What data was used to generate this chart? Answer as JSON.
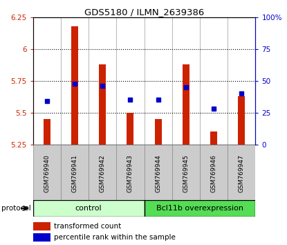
{
  "title": "GDS5180 / ILMN_2639386",
  "samples": [
    "GSM769940",
    "GSM769941",
    "GSM769942",
    "GSM769943",
    "GSM769944",
    "GSM769945",
    "GSM769946",
    "GSM769947"
  ],
  "bar_values": [
    5.45,
    6.18,
    5.88,
    5.5,
    5.45,
    5.88,
    5.35,
    5.63
  ],
  "bar_base": 5.25,
  "percentile_values": [
    34,
    48,
    46,
    35,
    35,
    45,
    28,
    40
  ],
  "ylim_left": [
    5.25,
    6.25
  ],
  "ylim_right": [
    0,
    100
  ],
  "yticks_left": [
    5.25,
    5.5,
    5.75,
    6.0,
    6.25
  ],
  "ytick_labels_left": [
    "5.25",
    "5.5",
    "5.75",
    "6",
    "6.25"
  ],
  "yticks_right": [
    0,
    25,
    50,
    75,
    100
  ],
  "ytick_labels_right": [
    "0",
    "25",
    "50",
    "75",
    "100%"
  ],
  "bar_color": "#cc2200",
  "percentile_color": "#0000cc",
  "grid_color": "#000000",
  "control_label": "control",
  "overexpression_label": "Bcl11b overexpression",
  "protocol_label": "protocol",
  "legend_bar_label": "transformed count",
  "legend_pct_label": "percentile rank within the sample",
  "control_bg": "#ccffcc",
  "overexpression_bg": "#55dd55",
  "label_area_bg": "#cccccc",
  "n_control": 4,
  "n_over": 4,
  "bar_width": 0.25
}
